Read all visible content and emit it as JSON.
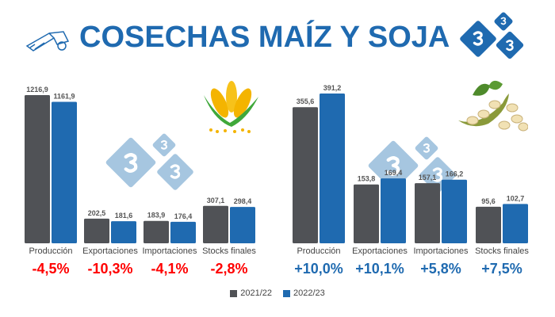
{
  "title": "COSECHAS MAÍZ Y SOJA",
  "logo_text": "3",
  "colors": {
    "s2021": "#505256",
    "s2022": "#1f6ab0",
    "title": "#1f6ab0",
    "negative": "#ff0000",
    "positive": "#1f6ab0",
    "logo": "#1f6ab0",
    "logo_watermark": "#a6c6e0"
  },
  "chart_data": [
    {
      "type": "bar",
      "crop": "Maíz",
      "categories": [
        "Producción",
        "Exportaciones",
        "Importaciones",
        "Stocks finales"
      ],
      "series": [
        {
          "name": "2021/22",
          "values": [
            1216.9,
            202.5,
            183.9,
            307.1
          ],
          "labels": [
            "1216,9",
            "202,5",
            "183,9",
            "307,1"
          ]
        },
        {
          "name": "2022/23",
          "values": [
            1161.9,
            181.6,
            176.4,
            298.4
          ],
          "labels": [
            "1161,9",
            "181,6",
            "176,4",
            "298,4"
          ]
        }
      ],
      "changes": [
        "-4,5%",
        "-10,3%",
        "-4,1%",
        "-2,8%"
      ]
    },
    {
      "type": "bar",
      "crop": "Soja",
      "categories": [
        "Producción",
        "Exportaciones",
        "Importaciones",
        "Stocks finales"
      ],
      "series": [
        {
          "name": "2021/22",
          "values": [
            355.6,
            153.8,
            157.1,
            95.6
          ],
          "labels": [
            "355,6",
            "153,8",
            "157,1",
            "95,6"
          ]
        },
        {
          "name": "2022/23",
          "values": [
            391.2,
            169.4,
            166.2,
            102.7
          ],
          "labels": [
            "391,2",
            "169,4",
            "166,2",
            "102,7"
          ]
        }
      ],
      "changes": [
        "+10,0%",
        "+10,1%",
        "+5,8%",
        "+7,5%"
      ]
    }
  ],
  "legend": [
    "2021/22",
    "2022/23"
  ]
}
